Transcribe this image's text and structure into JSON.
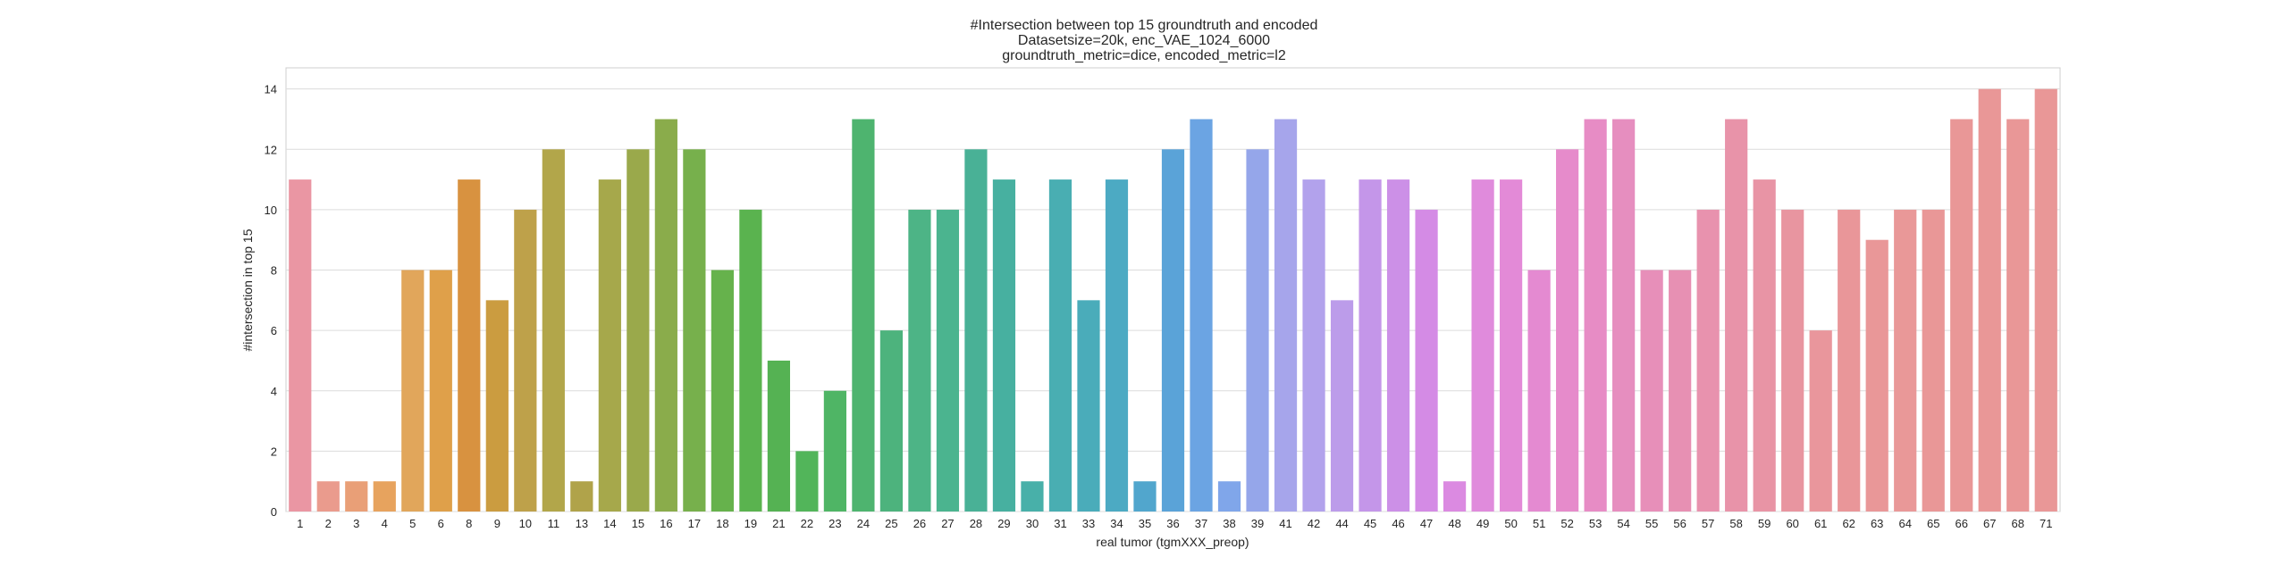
{
  "chart_data": {
    "type": "bar",
    "title_lines": [
      "#Intersection between top 15 groundtruth and encoded",
      "Datasetsize=20k, enc_VAE_1024_6000",
      "groundtruth_metric=dice, encoded_metric=l2"
    ],
    "xlabel": "real tumor (tgmXXX_preop)",
    "ylabel": "#intersection in top 15",
    "ylim": [
      0,
      14.7
    ],
    "yticks": [
      0,
      2,
      4,
      6,
      8,
      10,
      12,
      14
    ],
    "grid": true,
    "categories": [
      "1",
      "2",
      "3",
      "4",
      "5",
      "6",
      "8",
      "9",
      "10",
      "11",
      "13",
      "14",
      "15",
      "16",
      "17",
      "18",
      "19",
      "21",
      "22",
      "23",
      "24",
      "25",
      "26",
      "27",
      "28",
      "29",
      "30",
      "31",
      "33",
      "34",
      "35",
      "36",
      "37",
      "38",
      "39",
      "41",
      "42",
      "44",
      "45",
      "46",
      "47",
      "48",
      "49",
      "50",
      "51",
      "52",
      "53",
      "54",
      "55",
      "56",
      "57",
      "58",
      "59",
      "60",
      "61",
      "62",
      "63",
      "64",
      "65",
      "66",
      "67",
      "68",
      "71"
    ],
    "values": [
      11,
      1,
      1,
      1,
      8,
      8,
      11,
      7,
      10,
      12,
      1,
      11,
      12,
      13,
      12,
      8,
      10,
      5,
      2,
      4,
      13,
      6,
      10,
      10,
      12,
      11,
      1,
      11,
      7,
      11,
      1,
      12,
      13,
      1,
      12,
      13,
      11,
      7,
      11,
      11,
      10,
      1,
      11,
      11,
      8,
      12,
      13,
      13,
      8,
      8,
      10,
      13,
      11,
      10,
      6,
      10,
      9,
      10,
      10,
      13,
      14,
      13,
      14
    ],
    "colors": [
      "#ea96a3",
      "#ea9b8d",
      "#e99f77",
      "#e7a35e",
      "#e1a65b",
      "#dfa04a",
      "#d89240",
      "#cb9c40",
      "#bea14a",
      "#b2a64a",
      "#b0a34a",
      "#a6a84b",
      "#9aa94b",
      "#8aac4b",
      "#77b04c",
      "#66b24c",
      "#5ab34f",
      "#55b253",
      "#52b55a",
      "#4fb565",
      "#4eb46f",
      "#4db37d",
      "#4db486",
      "#4bb48f",
      "#49b196",
      "#47b0a0",
      "#48b0a9",
      "#49aeb2",
      "#4aacba",
      "#4caac3",
      "#51a6cd",
      "#5aa3d8",
      "#6ba4e3",
      "#80a6ea",
      "#95a6ea",
      "#a6a5eb",
      "#b2a2ec",
      "#bc9cea",
      "#c496e9",
      "#cc90e7",
      "#d48be5",
      "#db8ae1",
      "#e08bdc",
      "#e38ad7",
      "#e48ad1",
      "#e68bcb",
      "#e78cc5",
      "#e68ebf",
      "#e78fb9",
      "#e790b3",
      "#e892ae",
      "#e893a9",
      "#e894a5",
      "#e895a0",
      "#e9969c",
      "#e99699",
      "#e99798",
      "#e99898",
      "#e99797",
      "#e99797",
      "#e99797",
      "#e99797",
      "#e99797"
    ]
  }
}
